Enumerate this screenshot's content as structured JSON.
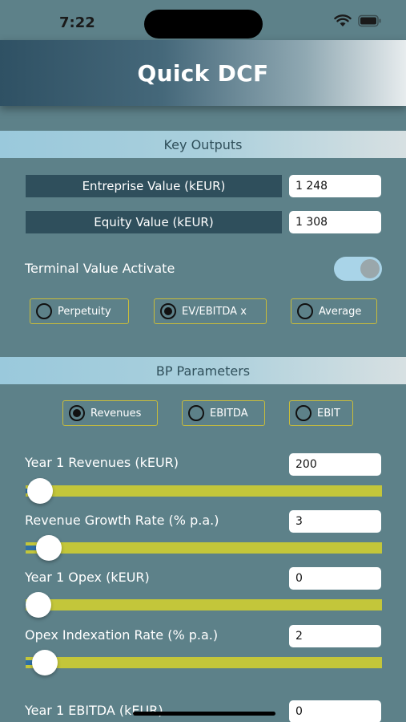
{
  "status_bar": {
    "time": "7:22"
  },
  "header": {
    "title": "Quick DCF"
  },
  "key_outputs": {
    "section_title": "Key Outputs",
    "enterprise_value_label": "Entreprise Value (kEUR)",
    "enterprise_value": "1 248",
    "equity_value_label": "Equity Value (kEUR)",
    "equity_value": "1 308",
    "terminal_value_label": "Terminal Value Activate",
    "terminal_value_on": true,
    "tv_options": [
      {
        "label": "Perpetuity",
        "selected": false
      },
      {
        "label": "EV/EBITDA x",
        "selected": true
      },
      {
        "label": "Average",
        "selected": false
      }
    ]
  },
  "bp_parameters": {
    "section_title": "BP Parameters",
    "basis_options": [
      {
        "label": "Revenues",
        "selected": true
      },
      {
        "label": "EBITDA",
        "selected": false
      },
      {
        "label": "EBIT",
        "selected": false
      }
    ],
    "fields": [
      {
        "label": "Year 1 Revenues (kEUR)",
        "value": "200",
        "slider_fraction": 0.04
      },
      {
        "label": "Revenue Growth Rate (% p.a.)",
        "value": "3",
        "slider_fraction": 0.065
      },
      {
        "label": "Year 1 Opex (kEUR)",
        "value": "0",
        "slider_fraction": 0.03
      },
      {
        "label": "Opex Indexation Rate (% p.a.)",
        "value": "2",
        "slider_fraction": 0.055
      },
      {
        "label": "Year 1 EBITDA (kEUR)",
        "value": "0"
      }
    ]
  },
  "colors": {
    "background": "#5d8189",
    "slider_track": "#c3c63a",
    "radio_border": "#c9bd3a",
    "output_label_bg": "#2f4f5c"
  }
}
